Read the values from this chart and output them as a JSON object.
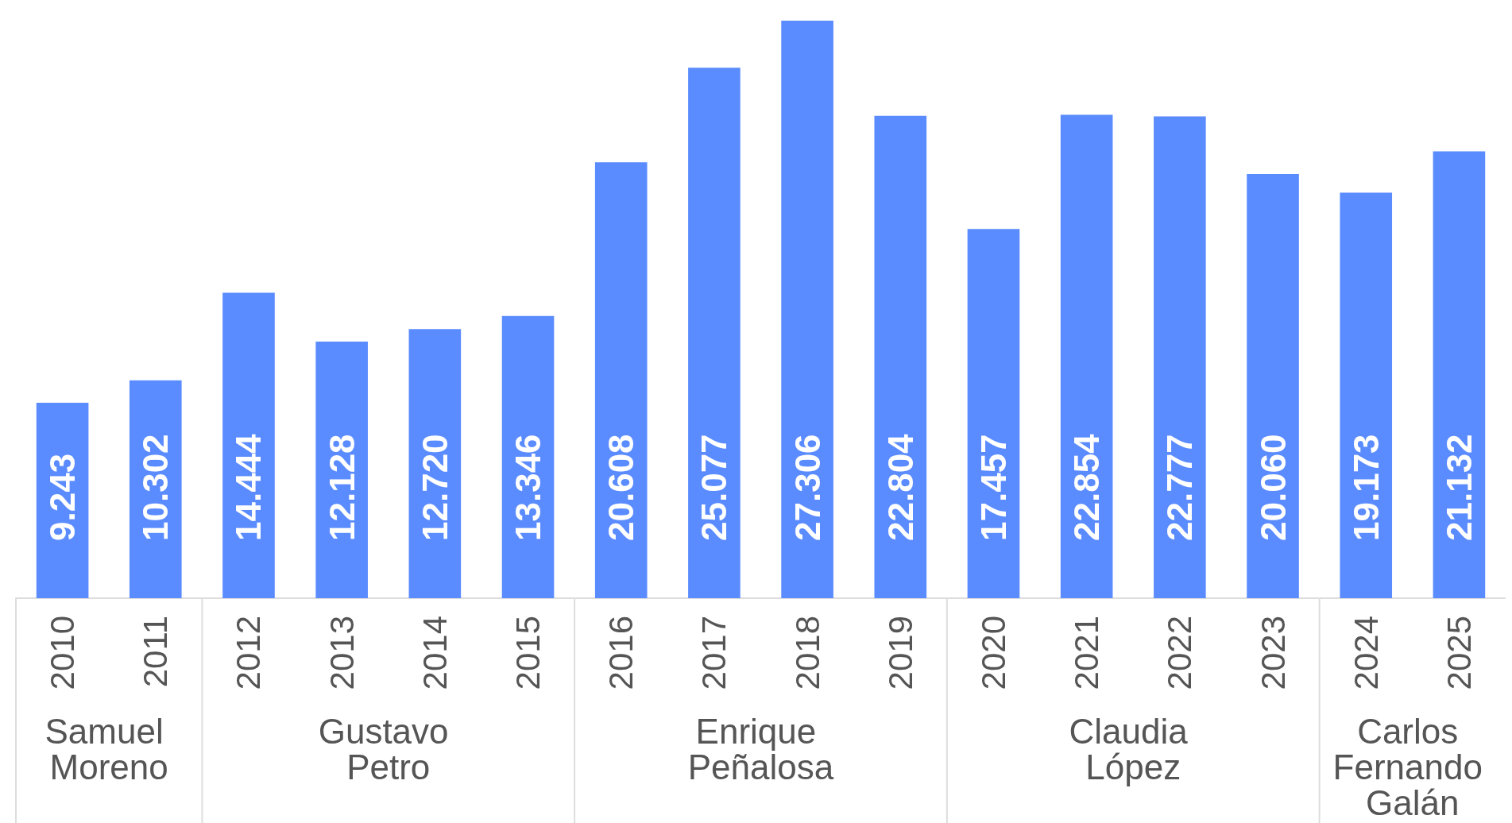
{
  "chart_data": {
    "type": "bar",
    "categories": [
      "2010",
      "2011",
      "2012",
      "2013",
      "2014",
      "2015",
      "2016",
      "2017",
      "2018",
      "2019",
      "2020",
      "2021",
      "2022",
      "2023",
      "2024",
      "2025"
    ],
    "values": [
      9243,
      10302,
      14444,
      12128,
      12720,
      13346,
      20608,
      25077,
      27306,
      22804,
      17457,
      22854,
      22777,
      20060,
      19173,
      21132
    ],
    "value_labels": [
      "9.243",
      "10.302",
      "14.444",
      "12.128",
      "12.720",
      "13.346",
      "20.608",
      "25.077",
      "27.306",
      "22.804",
      "17.457",
      "22.854",
      "22.777",
      "20.060",
      "19.173",
      "21.132"
    ],
    "color": "#5b8cff",
    "annotations": [
      "Samuel Moreno",
      "Gustavo Petro",
      "Enrique Peñalosa",
      "Claudia López",
      "Carlos Fernando Galán"
    ]
  }
}
